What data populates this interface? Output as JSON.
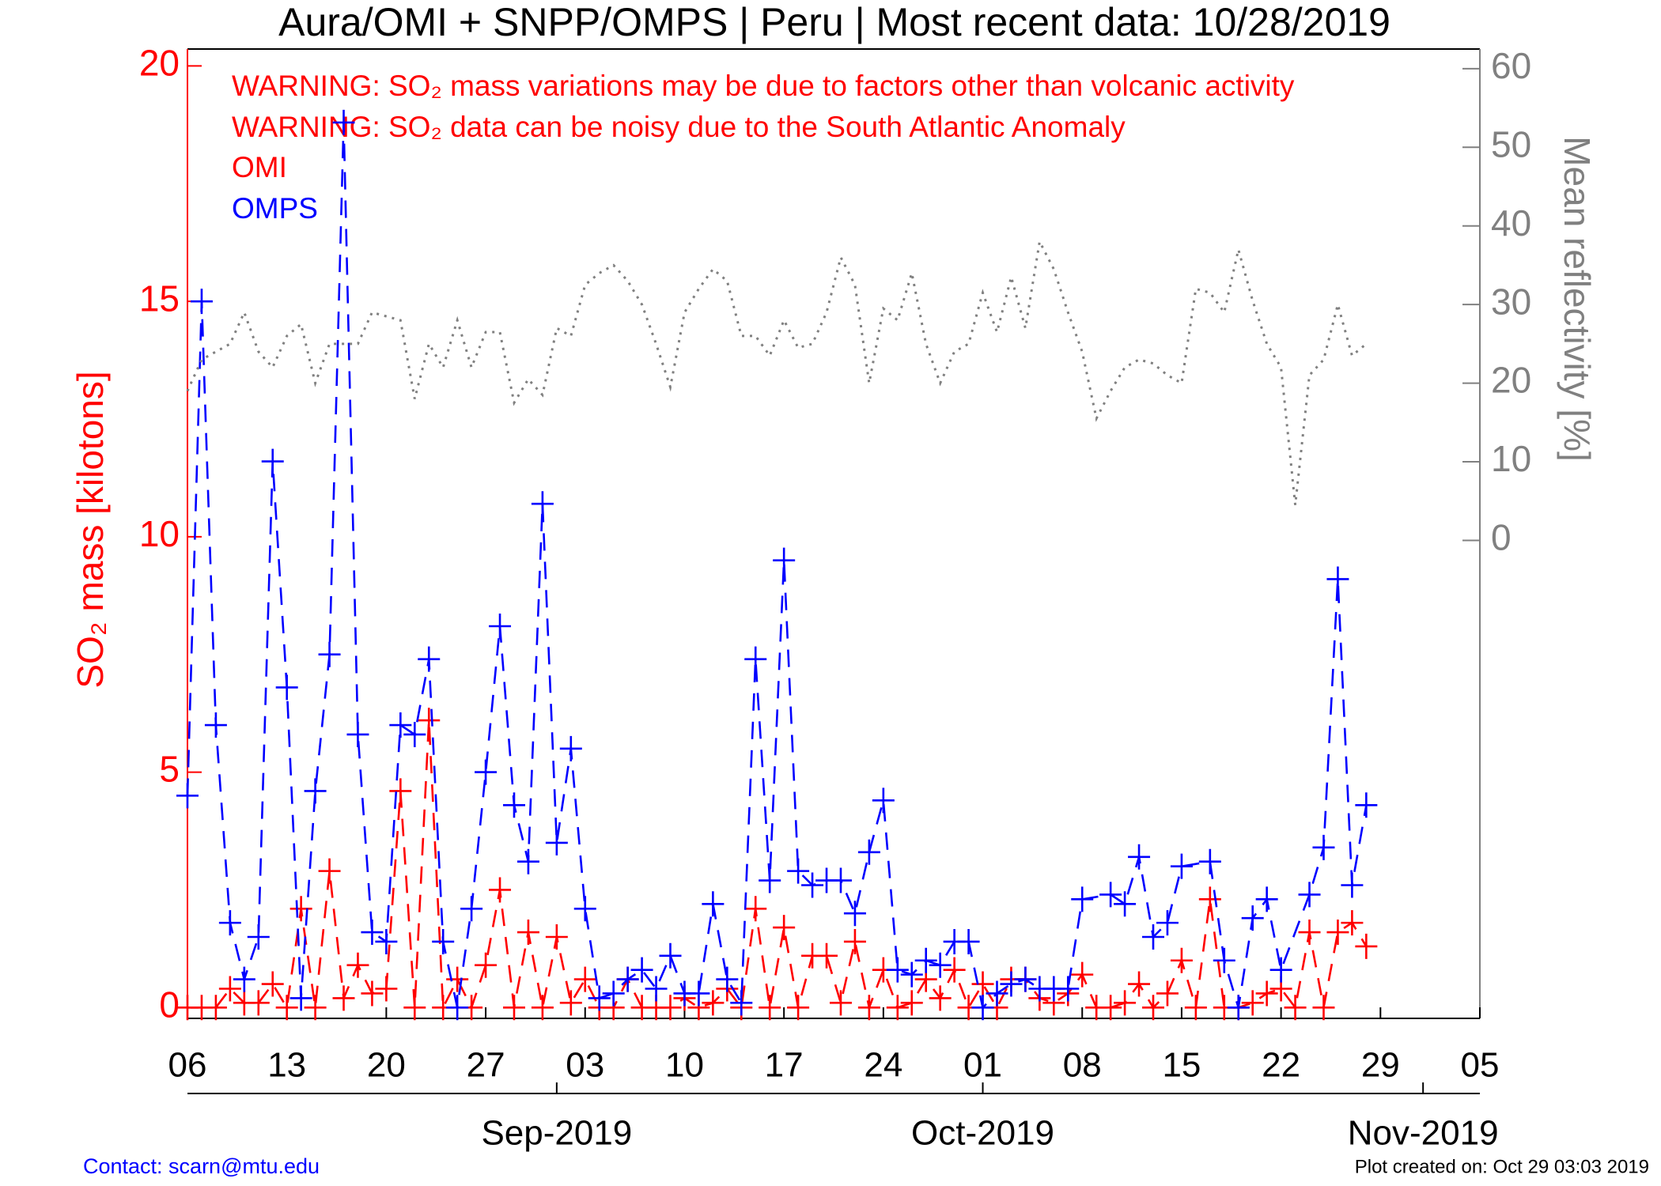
{
  "chart_data": {
    "type": "line",
    "title": "Aura/OMI + SNPP/OMPS | Peru | Most recent data: 10/28/2019",
    "annotations": [
      "WARNING: SO₂ mass variations may be due to factors other than volcanic activity",
      "WARNING: SO₂ data can be noisy due to the South Atlantic Anomaly"
    ],
    "y_label": "SO₂ mass [kilotons]",
    "y2_label": "Mean reflectivity [%]",
    "contact": "Contact: scarn@mtu.edu",
    "created": "Plot created on: Oct 29 03:03 2019",
    "x": [
      "2019-08-06",
      "2019-08-07",
      "2019-08-08",
      "2019-08-09",
      "2019-08-10",
      "2019-08-11",
      "2019-08-12",
      "2019-08-13",
      "2019-08-14",
      "2019-08-15",
      "2019-08-16",
      "2019-08-17",
      "2019-08-18",
      "2019-08-19",
      "2019-08-20",
      "2019-08-21",
      "2019-08-22",
      "2019-08-23",
      "2019-08-24",
      "2019-08-25",
      "2019-08-26",
      "2019-08-27",
      "2019-08-28",
      "2019-08-29",
      "2019-08-30",
      "2019-08-31",
      "2019-09-01",
      "2019-09-02",
      "2019-09-03",
      "2019-09-04",
      "2019-09-05",
      "2019-09-06",
      "2019-09-07",
      "2019-09-08",
      "2019-09-09",
      "2019-09-10",
      "2019-09-11",
      "2019-09-12",
      "2019-09-13",
      "2019-09-14",
      "2019-09-15",
      "2019-09-16",
      "2019-09-17",
      "2019-09-18",
      "2019-09-19",
      "2019-09-20",
      "2019-09-21",
      "2019-09-22",
      "2019-09-23",
      "2019-09-24",
      "2019-09-25",
      "2019-09-26",
      "2019-09-27",
      "2019-09-28",
      "2019-09-29",
      "2019-09-30",
      "2019-10-01",
      "2019-10-02",
      "2019-10-03",
      "2019-10-04",
      "2019-10-05",
      "2019-10-06",
      "2019-10-07",
      "2019-10-08",
      "2019-10-09",
      "2019-10-10",
      "2019-10-11",
      "2019-10-12",
      "2019-10-13",
      "2019-10-14",
      "2019-10-15",
      "2019-10-16",
      "2019-10-17",
      "2019-10-18",
      "2019-10-19",
      "2019-10-20",
      "2019-10-21",
      "2019-10-22",
      "2019-10-23",
      "2019-10-24",
      "2019-10-25",
      "2019-10-26",
      "2019-10-27",
      "2019-10-28"
    ],
    "series": [
      {
        "name": "OMI",
        "color": "#ff0000",
        "marker": "+",
        "dash": "dashed",
        "values": [
          0.0,
          0.0,
          0.0,
          0.4,
          0.1,
          0.1,
          0.5,
          0.0,
          2.1,
          0.0,
          2.9,
          0.2,
          0.9,
          0.3,
          0.4,
          4.6,
          0.0,
          6.1,
          0.0,
          0.6,
          0.0,
          0.9,
          2.5,
          0.0,
          1.6,
          0.0,
          1.5,
          0.1,
          0.6,
          0.0,
          0.0,
          0.6,
          0.0,
          0.0,
          0.0,
          0.2,
          0.0,
          0.1,
          0.4,
          0.0,
          2.1,
          0.0,
          1.7,
          0.0,
          1.1,
          1.1,
          0.1,
          1.4,
          0.0,
          0.8,
          0.0,
          0.1,
          0.6,
          0.2,
          0.8,
          0.0,
          0.5,
          0.0,
          0.6,
          0.6,
          0.2,
          0.1,
          0.3,
          0.7,
          0.0,
          0.0,
          0.1,
          0.5,
          0.0,
          0.3,
          1.0,
          0.0,
          2.3,
          0.0,
          0.0,
          0.1,
          0.3,
          0.4,
          0.0,
          1.6,
          0.0,
          1.6,
          1.8,
          1.3
        ]
      },
      {
        "name": "OMPS",
        "color": "#0000ff",
        "marker": "+",
        "dash": "dashed",
        "x": [
          "2019-08-06",
          "2019-08-07",
          "2019-08-08",
          "2019-08-09",
          "2019-08-10",
          "2019-08-11",
          "2019-08-12",
          "2019-08-13",
          "2019-08-14",
          "2019-08-15",
          "2019-08-16",
          "2019-08-17",
          "2019-08-18",
          "2019-08-19",
          "2019-08-20",
          "2019-08-21",
          "2019-08-22",
          "2019-08-23",
          "2019-08-24",
          "2019-08-25",
          "2019-08-26",
          "2019-08-27",
          "2019-08-28",
          "2019-08-29",
          "2019-08-30",
          "2019-08-31",
          "2019-09-01",
          "2019-09-02",
          "2019-09-03",
          "2019-09-04",
          "2019-09-05",
          "2019-09-06",
          "2019-09-07",
          "2019-09-08",
          "2019-09-09",
          "2019-09-10",
          "2019-09-11",
          "2019-09-12",
          "2019-09-13",
          "2019-09-14",
          "2019-09-15",
          "2019-09-16",
          "2019-09-17",
          "2019-09-18",
          "2019-09-19",
          "2019-09-20",
          "2019-09-21",
          "2019-09-22",
          "2019-09-23",
          "2019-09-24",
          "2019-09-25",
          "2019-09-26",
          "2019-09-27",
          "2019-09-28",
          "2019-09-29",
          "2019-09-30",
          "2019-10-01",
          "2019-10-02",
          "2019-10-03",
          "2019-10-04",
          "2019-10-05",
          "2019-10-06",
          "2019-10-07",
          "2019-10-08",
          "2019-10-10",
          "2019-10-11",
          "2019-10-12",
          "2019-10-13",
          "2019-10-14",
          "2019-10-15",
          "2019-10-17",
          "2019-10-18",
          "2019-10-19",
          "2019-10-20",
          "2019-10-21",
          "2019-10-22",
          "2019-10-24",
          "2019-10-25",
          "2019-10-26",
          "2019-10-27",
          "2019-10-28"
        ],
        "values": [
          4.5,
          15.0,
          6.0,
          1.8,
          0.6,
          1.5,
          11.6,
          6.8,
          0.2,
          4.6,
          7.5,
          18.8,
          5.8,
          1.6,
          1.4,
          6.0,
          5.8,
          7.4,
          1.4,
          0.0,
          2.1,
          5.0,
          8.1,
          4.3,
          3.1,
          10.7,
          3.5,
          5.5,
          2.1,
          0.2,
          0.3,
          0.6,
          0.8,
          0.4,
          1.1,
          0.3,
          0.3,
          2.2,
          0.6,
          0.1,
          7.4,
          2.7,
          9.5,
          2.9,
          2.6,
          2.7,
          2.7,
          2.0,
          3.3,
          4.4,
          0.8,
          0.7,
          1.0,
          0.9,
          1.4,
          1.4,
          0.0,
          0.3,
          0.5,
          0.6,
          0.4,
          0.4,
          0.4,
          2.3,
          2.4,
          2.2,
          3.2,
          1.5,
          1.8,
          3.0,
          3.1,
          1.0,
          0.0,
          1.9,
          2.3,
          0.8,
          2.4,
          3.4,
          9.1,
          2.6,
          4.3
        ]
      },
      {
        "color": "#808080",
        "axis": "y2",
        "dash": "dotted",
        "values": [
          19,
          23,
          24,
          25,
          29,
          24,
          22,
          26,
          27.5,
          20,
          25,
          25,
          25,
          29,
          28.5,
          28,
          18,
          25,
          22,
          28,
          22,
          26.5,
          26.5,
          17.5,
          20.5,
          18.5,
          27,
          26,
          32.5,
          34,
          35,
          33,
          30,
          25,
          19.5,
          29,
          32,
          34.5,
          33,
          26,
          26,
          23.5,
          28,
          24.5,
          25,
          29,
          36,
          32.5,
          20,
          29.5,
          28,
          34,
          25,
          20,
          24,
          25,
          31.5,
          26.5,
          33.5,
          27,
          38,
          34.5,
          29,
          24,
          15.5,
          19,
          22,
          23,
          22.5,
          21,
          20,
          32,
          31.5,
          29,
          37,
          30.5,
          25,
          22,
          4.5,
          21,
          23,
          30,
          23.5,
          25
        ]
      }
    ],
    "xlim": [
      "2019-08-06",
      "2019-11-05"
    ],
    "xticks": [
      {
        "value": "2019-08-06",
        "label": "06"
      },
      {
        "value": "2019-08-13",
        "label": "13"
      },
      {
        "value": "2019-08-20",
        "label": "20"
      },
      {
        "value": "2019-08-27",
        "label": "27"
      },
      {
        "value": "2019-09-03",
        "label": "03"
      },
      {
        "value": "2019-09-10",
        "label": "10"
      },
      {
        "value": "2019-09-17",
        "label": "17"
      },
      {
        "value": "2019-09-24",
        "label": "24"
      },
      {
        "value": "2019-10-01",
        "label": "01"
      },
      {
        "value": "2019-10-08",
        "label": "08"
      },
      {
        "value": "2019-10-15",
        "label": "15"
      },
      {
        "value": "2019-10-22",
        "label": "22"
      },
      {
        "value": "2019-10-29",
        "label": "29"
      },
      {
        "value": "2019-11-05",
        "label": "05"
      }
    ],
    "month_ticks": [
      {
        "value": "2019-09-01",
        "label": "Sep-2019"
      },
      {
        "value": "2019-10-01",
        "label": "Oct-2019"
      },
      {
        "value": "2019-11-01",
        "label": "Nov-2019"
      }
    ],
    "ylim": [
      -0.23,
      20.36
    ],
    "yticks": [
      0,
      5,
      10,
      15,
      20
    ],
    "y2lim": [
      -60.8,
      62.5
    ],
    "y2ticks": [
      0,
      10,
      20,
      30,
      40,
      50,
      60
    ]
  }
}
